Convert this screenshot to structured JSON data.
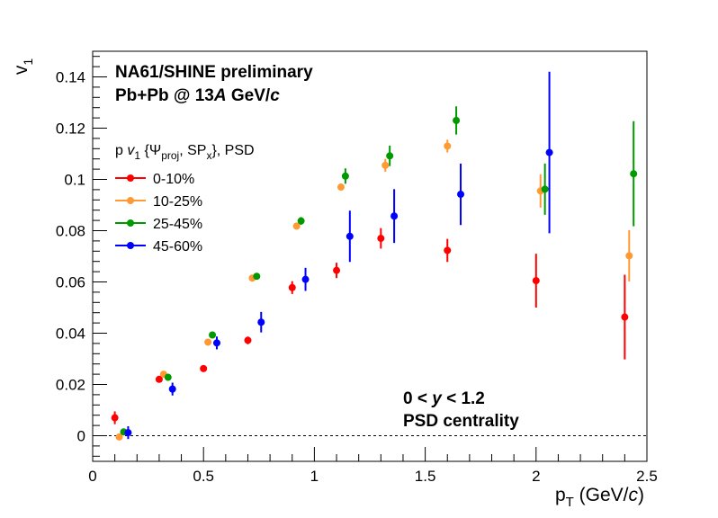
{
  "chart_data": {
    "type": "scatter",
    "header": {
      "line1": "NA61/SHINE preliminary",
      "line2": "Pb+Pb @ 13A GeV/c"
    },
    "xlabel": "p_T (GeV/c)",
    "ylabel": "v_1",
    "xlim": [
      0,
      2.5
    ],
    "ylim": [
      -0.01,
      0.15
    ],
    "xticks": [
      {
        "v": 0,
        "label": "0"
      },
      {
        "v": 0.5,
        "label": "0.5"
      },
      {
        "v": 1,
        "label": "1"
      },
      {
        "v": 1.5,
        "label": "1.5"
      },
      {
        "v": 2,
        "label": "2"
      },
      {
        "v": 2.5,
        "label": "2.5"
      }
    ],
    "yticks": [
      {
        "v": 0,
        "label": "0"
      },
      {
        "v": 0.02,
        "label": "0.02"
      },
      {
        "v": 0.04,
        "label": "0.04"
      },
      {
        "v": 0.06,
        "label": "0.06"
      },
      {
        "v": 0.08,
        "label": "0.08"
      },
      {
        "v": 0.1,
        "label": "0.1"
      },
      {
        "v": 0.12,
        "label": "0.12"
      },
      {
        "v": 0.14,
        "label": "0.14"
      }
    ],
    "legend": {
      "title": "p v1 {Ψproj, SPx}, PSD",
      "position": "upper-left"
    },
    "annotation": {
      "line1": "0 < y < 1.2",
      "line2": "PSD centrality"
    },
    "reference_line": {
      "y": 0,
      "style": "dashed"
    },
    "series": [
      {
        "name": "0-10%",
        "color": "#ff0000",
        "points": [
          {
            "x": 0.1,
            "y": 0.007,
            "err": 0.0025
          },
          {
            "x": 0.3,
            "y": 0.022,
            "err": 0.001
          },
          {
            "x": 0.5,
            "y": 0.0262,
            "err": 0.001
          },
          {
            "x": 0.7,
            "y": 0.0372,
            "err": 0.0015
          },
          {
            "x": 0.9,
            "y": 0.0578,
            "err": 0.0025
          },
          {
            "x": 1.1,
            "y": 0.0645,
            "err": 0.003
          },
          {
            "x": 1.3,
            "y": 0.077,
            "err": 0.004
          },
          {
            "x": 1.6,
            "y": 0.0723,
            "err": 0.0045
          },
          {
            "x": 2.0,
            "y": 0.0605,
            "err": 0.0105
          },
          {
            "x": 2.4,
            "y": 0.0463,
            "err": 0.0165
          }
        ]
      },
      {
        "name": "10-25%",
        "color": "#ff9933",
        "points": [
          {
            "x": 0.12,
            "y": -0.0005,
            "err": 0.001
          },
          {
            "x": 0.32,
            "y": 0.024,
            "err": 0.0008
          },
          {
            "x": 0.52,
            "y": 0.0365,
            "err": 0.001
          },
          {
            "x": 0.72,
            "y": 0.0615,
            "err": 0.001
          },
          {
            "x": 0.92,
            "y": 0.0818,
            "err": 0.0012
          },
          {
            "x": 1.12,
            "y": 0.097,
            "err": 0.0012
          },
          {
            "x": 1.32,
            "y": 0.1055,
            "err": 0.0025
          },
          {
            "x": 1.6,
            "y": 0.113,
            "err": 0.0025
          },
          {
            "x": 2.02,
            "y": 0.0955,
            "err": 0.0065
          },
          {
            "x": 2.42,
            "y": 0.0702,
            "err": 0.01
          }
        ]
      },
      {
        "name": "25-45%",
        "color": "#009900",
        "points": [
          {
            "x": 0.14,
            "y": 0.0015,
            "err": 0.0012
          },
          {
            "x": 0.34,
            "y": 0.0228,
            "err": 0.0008
          },
          {
            "x": 0.54,
            "y": 0.0393,
            "err": 0.001
          },
          {
            "x": 0.74,
            "y": 0.0622,
            "err": 0.0012
          },
          {
            "x": 0.94,
            "y": 0.0838,
            "err": 0.0015
          },
          {
            "x": 1.14,
            "y": 0.1013,
            "err": 0.003
          },
          {
            "x": 1.34,
            "y": 0.1092,
            "err": 0.004
          },
          {
            "x": 1.64,
            "y": 0.123,
            "err": 0.0055
          },
          {
            "x": 2.04,
            "y": 0.0962,
            "err": 0.01
          },
          {
            "x": 2.44,
            "y": 0.1022,
            "err": 0.0205
          }
        ]
      },
      {
        "name": "45-60%",
        "color": "#0000ff",
        "points": [
          {
            "x": 0.16,
            "y": 0.0012,
            "err": 0.0025
          },
          {
            "x": 0.36,
            "y": 0.0182,
            "err": 0.0025
          },
          {
            "x": 0.56,
            "y": 0.0362,
            "err": 0.0025
          },
          {
            "x": 0.76,
            "y": 0.0443,
            "err": 0.004
          },
          {
            "x": 0.96,
            "y": 0.061,
            "err": 0.0045
          },
          {
            "x": 1.16,
            "y": 0.0778,
            "err": 0.01
          },
          {
            "x": 1.36,
            "y": 0.0857,
            "err": 0.0105
          },
          {
            "x": 1.66,
            "y": 0.0942,
            "err": 0.012
          },
          {
            "x": 2.06,
            "y": 0.1105,
            "err": 0.0315
          }
        ]
      }
    ]
  }
}
